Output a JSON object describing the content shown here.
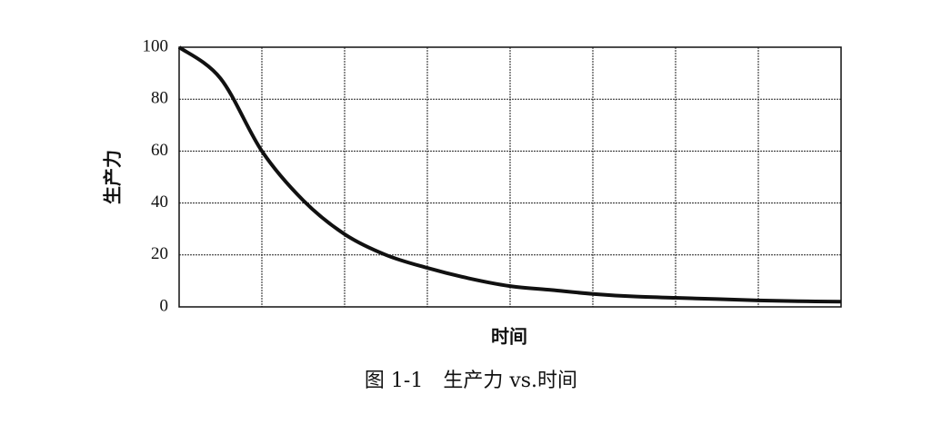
{
  "chart_data": {
    "type": "line",
    "caption": "图 1-1　生产力 vs.时间",
    "x_label": "时间",
    "y_label": "生产力",
    "categories": [
      null,
      null,
      null,
      null,
      null,
      null,
      null,
      null,
      null,
      null,
      null,
      null,
      null,
      null,
      null,
      null,
      null
    ],
    "series": [
      {
        "color": "#111111",
        "values": [
          100,
          88,
          60,
          41,
          28,
          20,
          15,
          11,
          8,
          6.5,
          5,
          4,
          3.5,
          3,
          2.5,
          2.2,
          2
        ]
      }
    ],
    "ylim": [
      0,
      100
    ],
    "yticks": [
      0,
      20,
      40,
      60,
      80,
      100
    ],
    "grid": true
  }
}
